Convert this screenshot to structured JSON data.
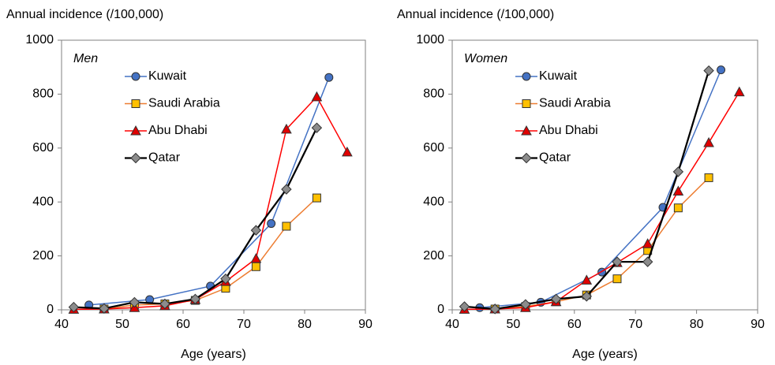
{
  "chart_data": [
    {
      "type": "line",
      "panel_label": "Men",
      "y_label": "Annual incidence (/100,000)",
      "x_label": "Age (years)",
      "xlim": [
        40,
        90
      ],
      "xticks": [
        40,
        50,
        60,
        70,
        80,
        90
      ],
      "ylim": [
        0,
        1000
      ],
      "yticks": [
        0,
        200,
        400,
        600,
        800,
        1000
      ],
      "series": [
        {
          "name": "Kuwait",
          "color": "#4472c4",
          "marker": "circle",
          "marker_color": "#4472c4",
          "x": [
            44.5,
            54.5,
            64.5,
            74.5,
            84
          ],
          "values": [
            18,
            38,
            88,
            320,
            862
          ]
        },
        {
          "name": "Saudi Arabia",
          "color": "#ed7d31",
          "marker": "square",
          "marker_color": "#ffc000",
          "x": [
            47,
            52,
            57,
            62,
            67,
            72,
            77,
            82
          ],
          "values": [
            3,
            18,
            22,
            35,
            80,
            160,
            310,
            415
          ]
        },
        {
          "name": "Abu Dhabi",
          "color": "#ff0000",
          "marker": "triangle",
          "marker_color": "#e00000",
          "x": [
            42,
            47,
            52,
            57,
            62,
            67,
            72,
            77,
            82,
            87
          ],
          "values": [
            2,
            3,
            8,
            15,
            38,
            105,
            190,
            670,
            790,
            585
          ]
        },
        {
          "name": "Qatar",
          "color": "#000000",
          "marker": "diamond",
          "marker_color": "#8c8c8c",
          "x": [
            42,
            47,
            52,
            57,
            62,
            67,
            72,
            77,
            82
          ],
          "values": [
            10,
            5,
            28,
            22,
            40,
            115,
            295,
            447,
            675
          ]
        }
      ]
    },
    {
      "type": "line",
      "panel_label": "Women",
      "y_label": "Annual incidence (/100,000)",
      "x_label": "Age (years)",
      "xlim": [
        40,
        90
      ],
      "xticks": [
        40,
        50,
        60,
        70,
        80,
        90
      ],
      "ylim": [
        0,
        1000
      ],
      "yticks": [
        0,
        200,
        400,
        600,
        800,
        1000
      ],
      "series": [
        {
          "name": "Kuwait",
          "color": "#4472c4",
          "marker": "circle",
          "marker_color": "#4472c4",
          "x": [
            44.5,
            54.5,
            64.5,
            74.5,
            84
          ],
          "values": [
            8,
            28,
            140,
            380,
            890
          ]
        },
        {
          "name": "Saudi Arabia",
          "color": "#ed7d31",
          "marker": "square",
          "marker_color": "#ffc000",
          "x": [
            47,
            52,
            57,
            62,
            67,
            72,
            77,
            82
          ],
          "values": [
            3,
            12,
            30,
            55,
            115,
            220,
            378,
            490
          ]
        },
        {
          "name": "Abu Dhabi",
          "color": "#ff0000",
          "marker": "triangle",
          "marker_color": "#e00000",
          "x": [
            42,
            47,
            52,
            57,
            62,
            67,
            72,
            77,
            82,
            87
          ],
          "values": [
            2,
            3,
            8,
            30,
            110,
            175,
            245,
            440,
            620,
            808
          ]
        },
        {
          "name": "Qatar",
          "color": "#000000",
          "marker": "diamond",
          "marker_color": "#8c8c8c",
          "x": [
            42,
            47,
            52,
            57,
            62,
            67,
            72,
            77,
            82
          ],
          "values": [
            12,
            3,
            20,
            40,
            50,
            178,
            178,
            512,
            887
          ]
        }
      ]
    }
  ]
}
